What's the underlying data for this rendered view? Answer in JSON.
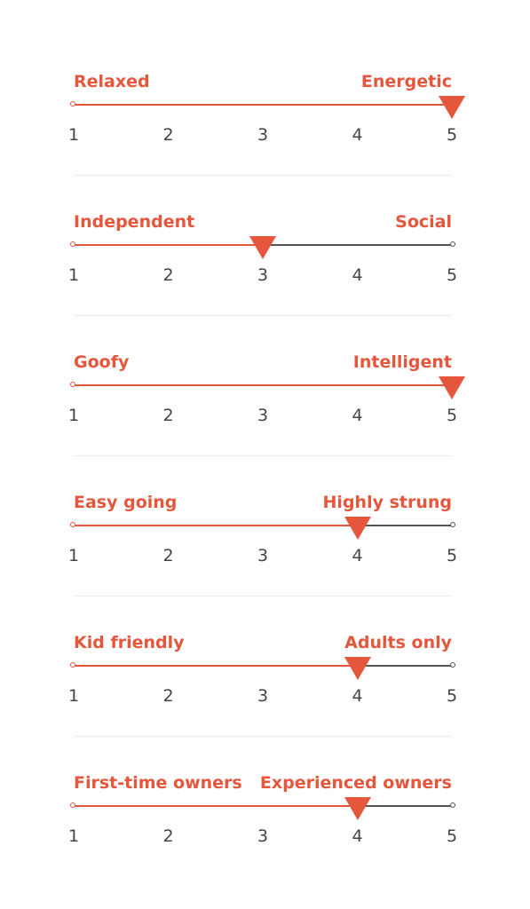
{
  "traits": [
    {
      "left": "Relaxed",
      "right": "Energetic",
      "value": 5
    },
    {
      "left": "Independent",
      "right": "Social",
      "value": 3
    },
    {
      "left": "Goofy",
      "right": "Intelligent",
      "value": 5
    },
    {
      "left": "Easy going",
      "right": "Highly strung",
      "value": 4
    },
    {
      "left": "Kid friendly",
      "right": "Adults only",
      "value": 4
    },
    {
      "left": "First-time owners",
      "right": "Experienced owners",
      "value": 4
    }
  ],
  "scale": {
    "min": 1,
    "max": 5,
    "ticks": [
      "1",
      "2",
      "3",
      "4",
      "5"
    ]
  },
  "colors": {
    "accent": "#e5573d",
    "track": "#555555",
    "tick_text": "#444444",
    "divider": "#ececec"
  }
}
